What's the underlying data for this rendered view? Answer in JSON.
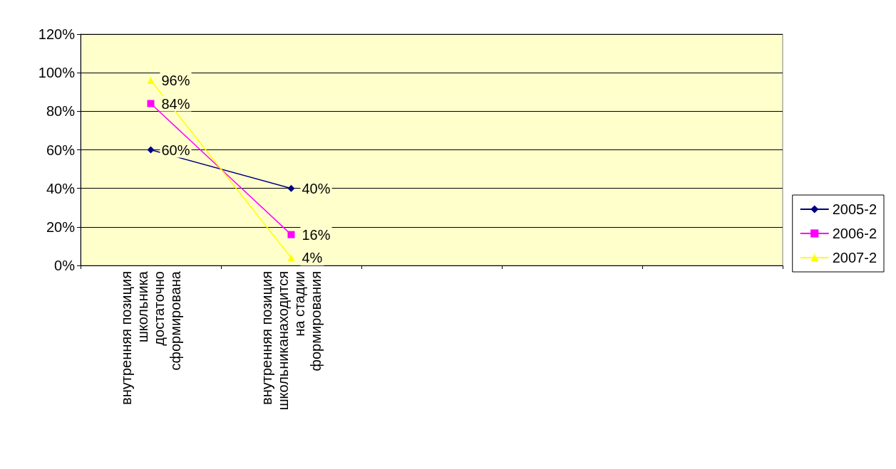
{
  "chart_data": {
    "type": "line",
    "categories": [
      "внутренняя позиция\nшкольника\nдостаточно\nсформирована",
      "внутренняя позиция\nшкольниканаходится\nна стадии\nформирования",
      null,
      null,
      null
    ],
    "series": [
      {
        "name": "2005-2",
        "color": "#000080",
        "marker": "diamond",
        "values": [
          60,
          40,
          null,
          null,
          null
        ],
        "value_labels": [
          "60%",
          "40%",
          null,
          null,
          null
        ]
      },
      {
        "name": "2006-2",
        "color": "#ff00ff",
        "marker": "square",
        "values": [
          84,
          16,
          null,
          null,
          null
        ],
        "value_labels": [
          "84%",
          "16%",
          null,
          null,
          null
        ]
      },
      {
        "name": "2007-2",
        "color": "#ffff00",
        "marker": "triangle",
        "values": [
          96,
          4,
          null,
          null,
          null
        ],
        "value_labels": [
          "96%",
          "4%",
          null,
          null,
          null
        ]
      }
    ],
    "ylim": [
      0,
      120
    ],
    "yticks": [
      {
        "value": 0,
        "label": "0%"
      },
      {
        "value": 20,
        "label": "20%"
      },
      {
        "value": 40,
        "label": "40%"
      },
      {
        "value": 60,
        "label": "60%"
      },
      {
        "value": 80,
        "label": "80%"
      },
      {
        "value": 100,
        "label": "100%"
      },
      {
        "value": 120,
        "label": "120%"
      }
    ],
    "grid": "y",
    "legend": "right"
  }
}
